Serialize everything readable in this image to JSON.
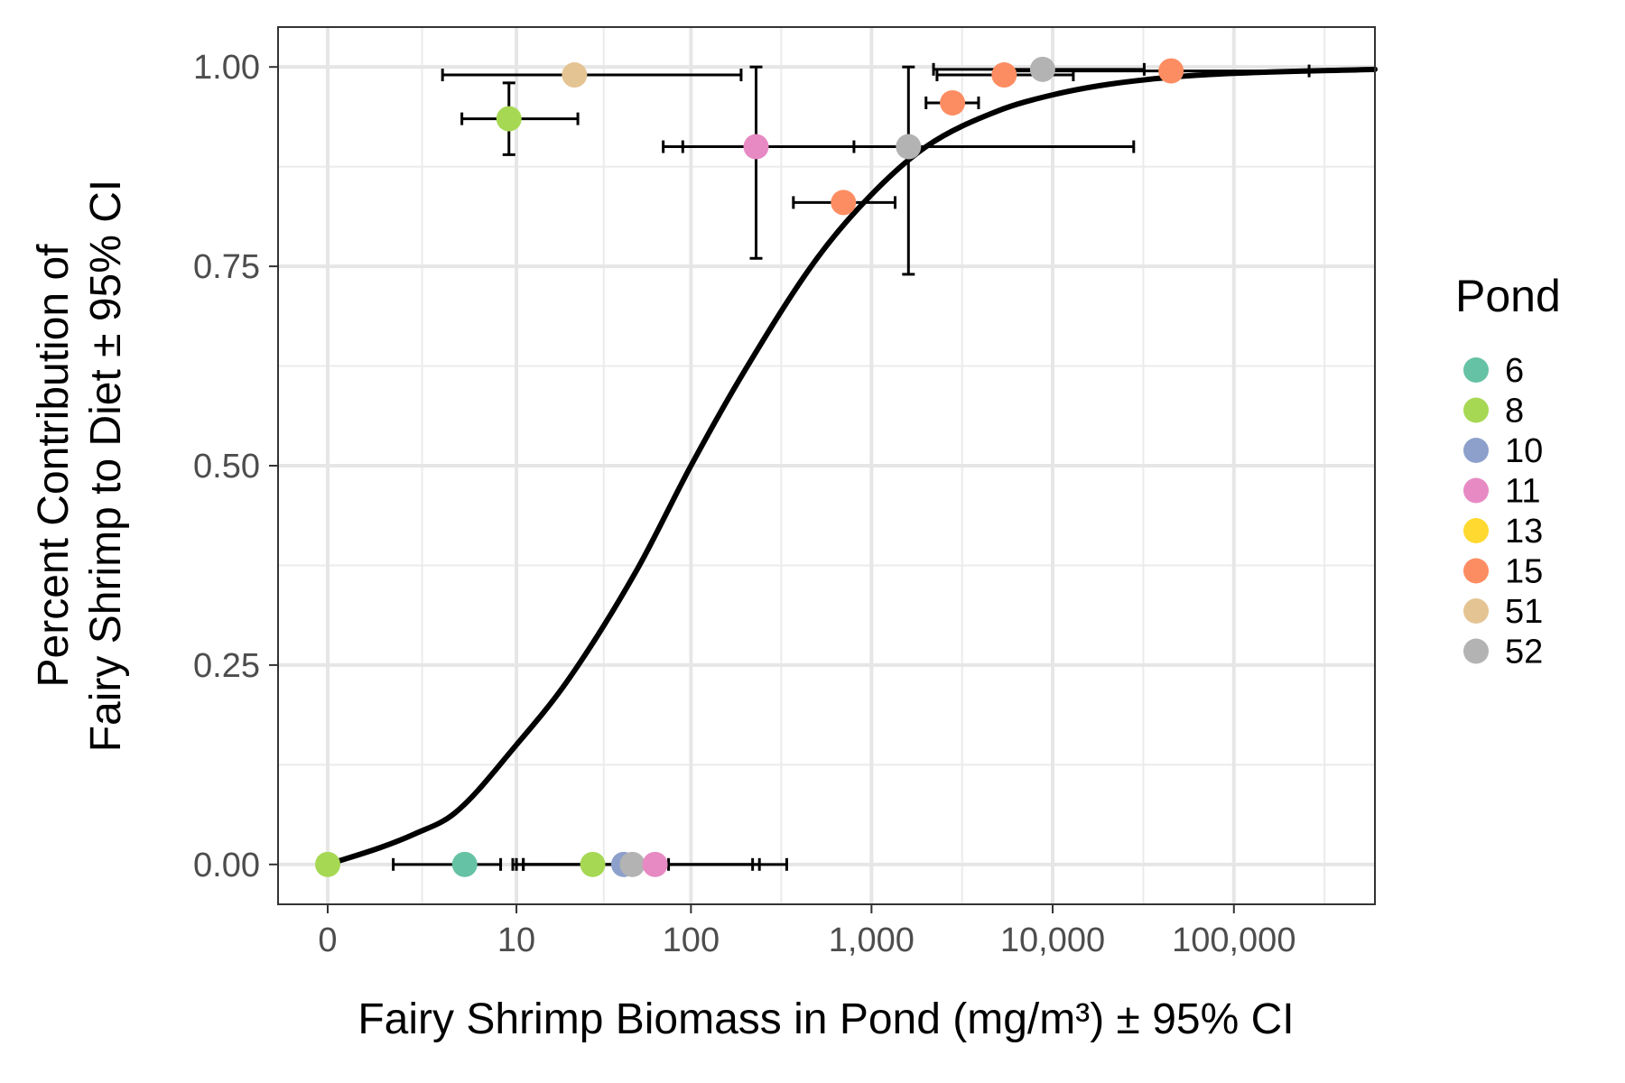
{
  "chart_data": {
    "type": "scatter",
    "title": "",
    "xlabel": "Fairy Shrimp Biomass in Pond (mg/m³) ± 95% CI",
    "ylabel_lines": [
      "Percent Contribution of",
      "Fairy Shrimp to Diet ± 95% CI"
    ],
    "x_scale": "log10(x+1)",
    "xlim": [
      0,
      600000
    ],
    "ylim": [
      -0.05,
      1.05
    ],
    "x_ticks": [
      {
        "value": 0,
        "label": "0"
      },
      {
        "value": 10,
        "label": "10"
      },
      {
        "value": 100,
        "label": "100"
      },
      {
        "value": 1000,
        "label": "1,000"
      },
      {
        "value": 10000,
        "label": "10,000"
      },
      {
        "value": 100000,
        "label": "100,000"
      }
    ],
    "y_ticks": [
      {
        "value": 0,
        "label": "0.00"
      },
      {
        "value": 0.25,
        "label": "0.25"
      },
      {
        "value": 0.5,
        "label": "0.50"
      },
      {
        "value": 0.75,
        "label": "0.75"
      },
      {
        "value": 1,
        "label": "1.00"
      }
    ],
    "grid": true,
    "legend": {
      "title": "Pond",
      "position": "right",
      "entries": [
        {
          "name": "6",
          "color": "#66c2a5"
        },
        {
          "name": "8",
          "color": "#a6d854"
        },
        {
          "name": "10",
          "color": "#8da0cb"
        },
        {
          "name": "11",
          "color": "#e78ac3"
        },
        {
          "name": "13",
          "color": "#ffd92f"
        },
        {
          "name": "15",
          "color": "#fc8d62"
        },
        {
          "name": "51",
          "color": "#e5c494"
        },
        {
          "name": "52",
          "color": "#b3b3b3"
        }
      ]
    },
    "points": [
      {
        "pond": "51",
        "x": 22,
        "y": 0.99,
        "xmin": 3.3,
        "xmax": 190
      },
      {
        "pond": "8",
        "x": 9,
        "y": 0.935,
        "xmin": 4.5,
        "xmax": 23,
        "ymin": 0.89,
        "ymax": 0.98
      },
      {
        "pond": "11",
        "x": 230,
        "y": 0.9,
        "xmin": 70,
        "xmax": 800,
        "ymin": 0.76,
        "ymax": 1.0
      },
      {
        "pond": "52",
        "x": 1600,
        "y": 0.9,
        "xmin": 90,
        "xmax": 28000,
        "ymin": 0.74,
        "ymax": 1.0
      },
      {
        "pond": "15",
        "x": 700,
        "y": 0.83,
        "xmin": 370,
        "xmax": 1350
      },
      {
        "pond": "15",
        "x": 2800,
        "y": 0.955,
        "xmin": 2000,
        "xmax": 3900
      },
      {
        "pond": "15",
        "x": 5400,
        "y": 0.99,
        "xmin": 2300,
        "xmax": 13000
      },
      {
        "pond": "52",
        "x": 8800,
        "y": 0.997,
        "xmin": 2200,
        "xmax": 32000
      },
      {
        "pond": "15",
        "x": 45000,
        "y": 0.995,
        "xmin": 5000,
        "xmax": 260000
      },
      {
        "pond": "8",
        "x": 0,
        "y": 0
      },
      {
        "pond": "6",
        "x": 4.7,
        "y": 0,
        "xmin": 1.3,
        "xmax": 8
      },
      {
        "pond": "8",
        "x": 28,
        "y": 0,
        "xmin": 9.5,
        "xmax": 75
      },
      {
        "pond": "10",
        "x": 42,
        "y": 0,
        "xmin": 10,
        "xmax": 220
      },
      {
        "pond": "52",
        "x": 47,
        "y": 0,
        "xmin": 11,
        "xmax": 240
      },
      {
        "pond": "11",
        "x": 63,
        "y": 0,
        "xmin": 11,
        "xmax": 340
      }
    ],
    "fit_curve": {
      "x": [
        0,
        1,
        2,
        4,
        10,
        20,
        50,
        100,
        200,
        500,
        1000,
        2000,
        5000,
        10000,
        20000,
        50000,
        100000,
        600000
      ],
      "y": [
        0,
        0.022,
        0.038,
        0.064,
        0.15,
        0.23,
        0.37,
        0.5,
        0.62,
        0.76,
        0.84,
        0.9,
        0.945,
        0.965,
        0.978,
        0.988,
        0.992,
        0.997
      ]
    }
  }
}
